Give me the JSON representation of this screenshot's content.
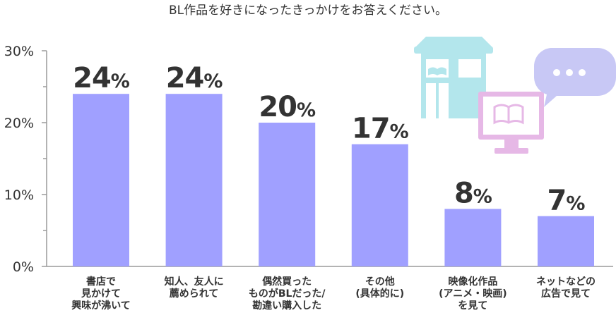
{
  "chart_data": {
    "type": "bar",
    "title": "BL作品を好きになったきっかけをお答えください。",
    "categories": [
      [
        "書店で",
        "見かけて",
        "興味が沸いて"
      ],
      [
        "知人、友人に",
        "薦められて"
      ],
      [
        "偶然買った",
        "ものがBLだった/",
        "勘違い購入した"
      ],
      [
        "その他",
        "(具体的に)"
      ],
      [
        "映像化作品",
        "(アニメ・映画)",
        "を見て"
      ],
      [
        "ネットなどの",
        "広告で見て"
      ]
    ],
    "values": [
      24,
      24,
      20,
      17,
      8,
      7
    ],
    "value_labels": [
      "24",
      "24",
      "20",
      "17",
      "8",
      "7"
    ],
    "value_suffix": "%",
    "yticks": [
      "0%",
      "10%",
      "20%",
      "30%"
    ],
    "ylim": [
      0,
      30
    ],
    "grid": false,
    "legend": "none",
    "bar_color": "#a0a0ff",
    "axis_color": "#9a9a9a",
    "decoration_colors": {
      "bookstore": "#b3e6ec",
      "monitor": "#e6b8e6",
      "bubble": "#c8c8f5"
    }
  }
}
